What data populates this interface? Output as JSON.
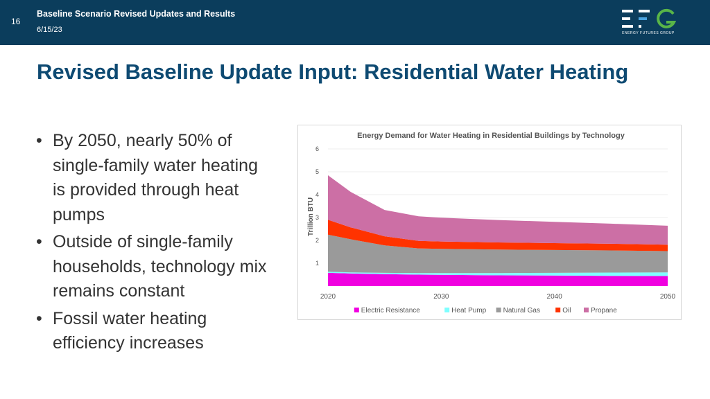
{
  "header": {
    "slide_number": "16",
    "title": "Baseline Scenario Revised Updates and Results",
    "date": "6/15/23",
    "logo_caption": "ENERGY FUTURES GROUP"
  },
  "page": {
    "title": "Revised Baseline Update Input: Residential Water Heating"
  },
  "bullets": [
    "By 2050, nearly 50% of single-family water heating is provided through heat pumps",
    "Outside of single-family households, technology mix remains constant",
    "Fossil water heating efficiency increases"
  ],
  "colors": {
    "header_bg": "#0b3d5c",
    "title": "#0e4a72",
    "logo_green": "#59b548",
    "logo_blue": "#4aa3df"
  },
  "chart_data": {
    "type": "area",
    "stacked": true,
    "title": "Energy Demand for Water Heating in Residential Buildings by Technology",
    "ylabel": "Trillion BTU",
    "xlabel": "",
    "x": [
      2020,
      2022,
      2025,
      2028,
      2030,
      2035,
      2040,
      2045,
      2050
    ],
    "xticks": [
      2020,
      2030,
      2040,
      2050
    ],
    "yticks": [
      1,
      2,
      3,
      4,
      5,
      6
    ],
    "xlim": [
      2020,
      2050
    ],
    "ylim": [
      0,
      6
    ],
    "grid": true,
    "legend": "bottom",
    "series": [
      {
        "name": "Electric Resistance",
        "color": "#f000e0",
        "values": [
          0.58,
          0.55,
          0.52,
          0.5,
          0.49,
          0.47,
          0.46,
          0.45,
          0.44
        ]
      },
      {
        "name": "Heat Pump",
        "color": "#7fffff",
        "values": [
          0.05,
          0.05,
          0.06,
          0.07,
          0.08,
          0.1,
          0.12,
          0.14,
          0.16
        ]
      },
      {
        "name": "Natural Gas",
        "color": "#9a9a9a",
        "values": [
          1.62,
          1.45,
          1.2,
          1.08,
          1.06,
          1.03,
          1.0,
          0.97,
          0.93
        ]
      },
      {
        "name": "Oil",
        "color": "#ff3300",
        "values": [
          0.65,
          0.52,
          0.4,
          0.33,
          0.32,
          0.31,
          0.3,
          0.29,
          0.28
        ]
      },
      {
        "name": "Propane",
        "color": "#cc6fa5",
        "values": [
          1.95,
          1.55,
          1.15,
          1.07,
          1.04,
          0.98,
          0.93,
          0.88,
          0.83
        ]
      }
    ]
  }
}
